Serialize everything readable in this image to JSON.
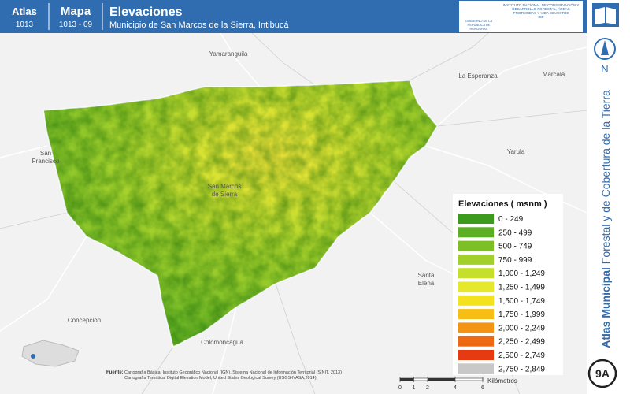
{
  "header": {
    "atlas_label": "Atlas",
    "atlas_number": "1013",
    "map_label": "Mapa",
    "map_number": "1013 - 09",
    "title": "Elevaciones",
    "subtitle": "Municipio de San Marcos de la Sierra, Intibucá",
    "logo_left": "GOBIERNO DE LA REPÚBLICA DE HONDURAS",
    "logo_right": "INSTITUTO NACIONAL DE CONSERVACIÓN Y DESARROLLO FORESTAL, ÁREAS PROTEGIDAS Y VIDA SILVESTRE",
    "logo_right_short": "ICF"
  },
  "sidebar": {
    "north": "N",
    "title_bold": "Atlas Municipal",
    "title_rest": "Forestal y de Cobertura de la Tierra",
    "sheet": "9A"
  },
  "map": {
    "places": [
      {
        "label": "Yamaranguila"
      },
      {
        "label": "La Esperanza"
      },
      {
        "label": "Marcala"
      },
      {
        "label": "San\nFrancisco"
      },
      {
        "label": "Yarula"
      },
      {
        "label": "San Marcos\nde Sierra"
      },
      {
        "label": "Santa\nElena"
      },
      {
        "label": "Concepción"
      },
      {
        "label": "Colomoncagua"
      }
    ]
  },
  "legend": {
    "title": "Elevaciones ( msnm )",
    "items": [
      {
        "label": "0 - 249",
        "color": "#3c9b1c"
      },
      {
        "label": "250 - 499",
        "color": "#5cae22"
      },
      {
        "label": "500 - 749",
        "color": "#7cc026"
      },
      {
        "label": "750 - 999",
        "color": "#a2d02a"
      },
      {
        "label": "1,000 - 1,249",
        "color": "#c6df2c"
      },
      {
        "label": "1,250 - 1,499",
        "color": "#e6e82e"
      },
      {
        "label": "1,500 - 1,749",
        "color": "#f5e21e"
      },
      {
        "label": "1,750 - 1,999",
        "color": "#f7bf16"
      },
      {
        "label": "2,000 - 2,249",
        "color": "#f39414"
      },
      {
        "label": "2,250 - 2,499",
        "color": "#ee6a12"
      },
      {
        "label": "2,500 - 2,749",
        "color": "#e63b10"
      },
      {
        "label": "2,750 - 2,849",
        "color": "#c8c8c8"
      }
    ]
  },
  "footer": {
    "source_label": "Fuente:",
    "source_lines": [
      "Cartografía Básica: Instituto Geográfico Nacional (IGN), Sistema Nacional de Información Territorial (SINIT, 2013)",
      "Cartografía Temática: Digital Elevation Model, United States Geological Survey (USGS-NASA,2014)"
    ],
    "scale": {
      "ticks": [
        0,
        1,
        2,
        4,
        6
      ],
      "unit": "Kilómetros"
    }
  }
}
